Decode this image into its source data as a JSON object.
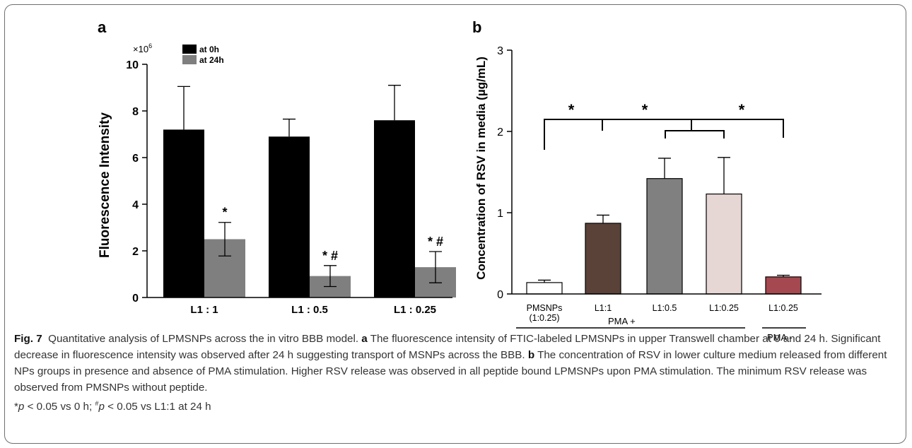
{
  "chart_data": [
    {
      "panel": "a",
      "type": "bar",
      "ylabel": "Fluorescence Intensity",
      "yscale_label": "×10",
      "yscale_exp": "6",
      "ylim": [
        0,
        10
      ],
      "yticks": [
        "0",
        "2",
        "4",
        "6",
        "8",
        "10"
      ],
      "categories": [
        "L1 : 1",
        "L1 : 0.5",
        "L1 : 0.25"
      ],
      "series": [
        {
          "name": "at 0h",
          "color": "#000000",
          "values": [
            7.2,
            6.9,
            7.6
          ],
          "errors": [
            1.85,
            0.75,
            1.5
          ]
        },
        {
          "name": "at 24h",
          "color": "#7f7f7f",
          "values": [
            2.5,
            0.92,
            1.3
          ],
          "errors": [
            0.72,
            0.45,
            0.67
          ]
        }
      ],
      "annotations": [
        "*",
        "* #",
        "* #"
      ],
      "legend_position": "top-left"
    },
    {
      "panel": "b",
      "type": "bar",
      "ylabel": "Concentration of RSV in media (µg/mL)",
      "ylim": [
        0,
        3
      ],
      "yticks": [
        "0",
        "1",
        "2",
        "3"
      ],
      "categories": [
        "PMSNPs (1:0.25)",
        "L1:1",
        "L1:0.5",
        "L1:0.25",
        "L1:0.25"
      ],
      "category_lines": [
        [
          "PMSNPs",
          "(1:0.25)"
        ],
        [
          "L1:1"
        ],
        [
          "L1:0.5"
        ],
        [
          "L1:0.25"
        ],
        [
          "L1:0.25"
        ]
      ],
      "values": [
        0.14,
        0.87,
        1.42,
        1.23,
        0.21
      ],
      "errors": [
        0.03,
        0.1,
        0.25,
        0.45,
        0.02
      ],
      "colors": [
        "#ffffff",
        "#5a4239",
        "#808080",
        "#e6d7d5",
        "#a5484f"
      ],
      "group_labels": [
        "PMA +",
        "PMA -"
      ],
      "significance": [
        "*",
        "*",
        "*"
      ]
    }
  ],
  "panel_labels": [
    "a",
    "b"
  ],
  "caption": {
    "fig_label": "Fig. 7",
    "text1": "Quantitative analysis of LPMSNPs across the in vitro BBB model. ",
    "a_label": "a",
    "text2": " The fluorescence intensity of FTIC-labeled LPMSNPs in upper Transwell chamber at 0 and 24 h. Significant decrease in fluorescence intensity was observed after 24 h suggesting transport of MSNPs across the BBB. ",
    "b_label": "b",
    "text3": " The concentration of RSV in lower culture medium released from different NPs groups in presence and absence of PMA stimulation. Higher RSV release was observed in all peptide bound LPMSNPs upon PMA stimulation. The minimum RSV release was observed from PMSNPs without peptide. ",
    "foot1_pre": "*",
    "foot1_p": "p",
    "foot1_post": " < 0.05 vs 0 h; ",
    "foot2_sup": "#",
    "foot2_p": "p",
    "foot2_post": " < 0.05 vs L1:1 at 24 h"
  }
}
